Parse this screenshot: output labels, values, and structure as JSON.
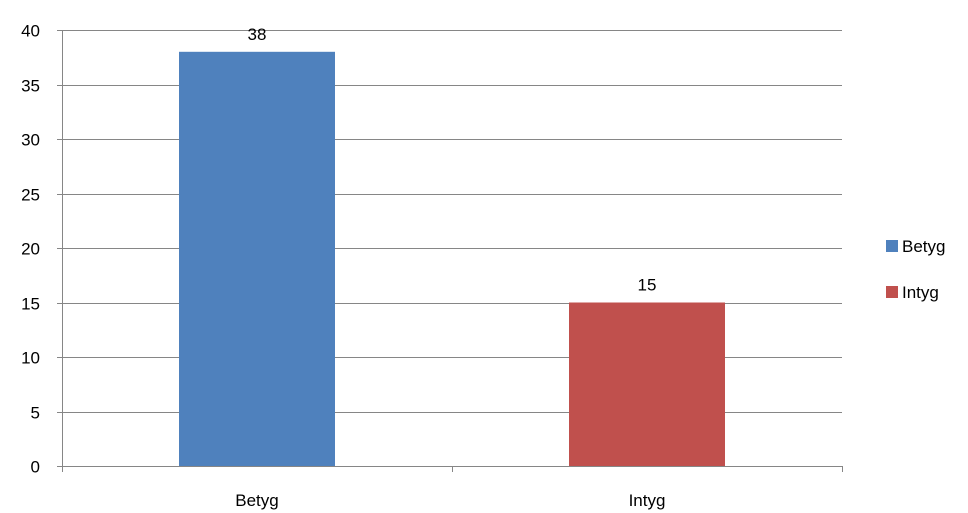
{
  "chart_data": {
    "type": "bar",
    "categories": [
      "Betyg",
      "Intyg"
    ],
    "series": [
      {
        "name": "Betyg",
        "values": [
          38,
          null
        ],
        "color": "#4F81BD"
      },
      {
        "name": "Intyg",
        "values": [
          null,
          15
        ],
        "color": "#C0504D"
      }
    ],
    "values": [
      38,
      15
    ],
    "data_labels": [
      "38",
      "15"
    ],
    "title": "",
    "xlabel": "",
    "ylabel": "",
    "ylim": [
      0,
      40
    ],
    "yticks": [
      0,
      5,
      10,
      15,
      20,
      25,
      30,
      35,
      40
    ],
    "grid": true,
    "legend": {
      "position": "right",
      "entries": [
        "Betyg",
        "Intyg"
      ]
    }
  }
}
